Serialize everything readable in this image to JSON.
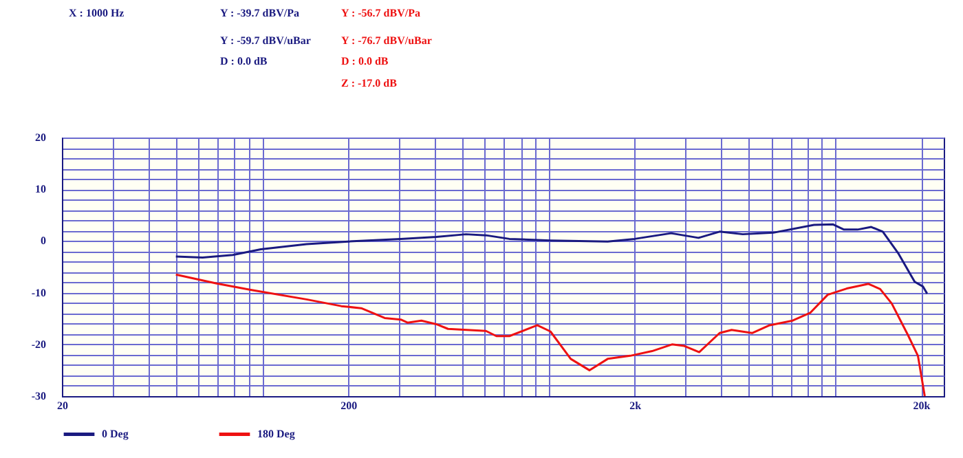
{
  "chart_data": {
    "type": "line",
    "annotations": [
      "X : 1000 Hz",
      "Y : -39.7 dBV/Pa",
      "Y : -59.7 dBV/uBar",
      "D : 0.0 dB",
      "Y : -56.7 dBV/Pa",
      "Y : -76.7 dBV/uBar",
      "D : 0.0 dB",
      "Z : -17.0 dB"
    ],
    "series": [
      {
        "name": "0 Deg",
        "color": "#1a1a80",
        "x": [
          50,
          62,
          79,
          99,
          143,
          200,
          305,
          406,
          515,
          605,
          730,
          1016,
          1610,
          2000,
          2680,
          3340,
          3960,
          4770,
          6100,
          8460,
          9860,
          10760,
          12000,
          13400,
          14700,
          16700,
          19000,
          20300,
          21000
        ],
        "values": [
          -3.0,
          -3.2,
          -2.7,
          -1.6,
          -0.6,
          -0.1,
          0.4,
          0.8,
          1.3,
          1.1,
          0.4,
          0.1,
          -0.1,
          0.4,
          1.5,
          0.6,
          1.8,
          1.3,
          1.6,
          3.1,
          3.2,
          2.2,
          2.2,
          2.7,
          1.8,
          -2.5,
          -7.9,
          -8.8,
          -10.2
        ]
      },
      {
        "name": "180 Deg",
        "color": "#ee1111",
        "x": [
          50,
          69,
          92,
          143,
          189,
          222,
          268,
          305,
          322,
          360,
          406,
          446,
          605,
          658,
          730,
          914,
          1016,
          1196,
          1390,
          1610,
          1930,
          2300,
          2700,
          2980,
          3360,
          3960,
          4360,
          5140,
          5920,
          7120,
          8200,
          9440,
          11000,
          13100,
          14400,
          15800,
          18000,
          19500,
          20600
        ],
        "values": [
          -6.5,
          -8.2,
          -9.5,
          -11.3,
          -12.6,
          -13.0,
          -14.9,
          -15.2,
          -15.8,
          -15.4,
          -16.1,
          -17.0,
          -17.4,
          -18.4,
          -18.4,
          -16.3,
          -17.5,
          -22.8,
          -25.0,
          -22.8,
          -22.2,
          -21.3,
          -20.0,
          -20.3,
          -21.5,
          -17.8,
          -17.2,
          -17.8,
          -16.3,
          -15.4,
          -13.9,
          -10.4,
          -9.2,
          -8.3,
          -9.3,
          -12.1,
          -18.2,
          -22.2,
          -30.0
        ]
      }
    ],
    "log": "x",
    "xlim": [
      20,
      24000
    ],
    "xticks": [
      20,
      {
        "value": 30,
        "label": null
      },
      {
        "value": 40,
        "label": null
      },
      {
        "value": 50,
        "label": null
      },
      {
        "value": 60,
        "label": null
      },
      {
        "value": 70,
        "label": null
      },
      {
        "value": 80,
        "label": null
      },
      {
        "value": 90,
        "label": null
      },
      {
        "value": 100,
        "label": null
      },
      200,
      {
        "value": 300,
        "label": null
      },
      {
        "value": 400,
        "label": null
      },
      {
        "value": 500,
        "label": null
      },
      {
        "value": 600,
        "label": null
      },
      {
        "value": 700,
        "label": null
      },
      {
        "value": 800,
        "label": null
      },
      {
        "value": 900,
        "label": null
      },
      {
        "value": 1000,
        "label": null
      },
      {
        "value": 2000,
        "label": "2k"
      },
      {
        "value": 3000,
        "label": null
      },
      {
        "value": 4000,
        "label": null
      },
      {
        "value": 5000,
        "label": null
      },
      {
        "value": 6000,
        "label": null
      },
      {
        "value": 7000,
        "label": null
      },
      {
        "value": 8000,
        "label": null
      },
      {
        "value": 9000,
        "label": null
      },
      {
        "value": 10000,
        "label": null
      },
      {
        "value": 20000,
        "label": "20k"
      }
    ],
    "ylim": [
      -30,
      20
    ],
    "yticks": [
      -30,
      {
        "value": -28,
        "label": null
      },
      {
        "value": -26,
        "label": null
      },
      {
        "value": -24,
        "label": null
      },
      {
        "value": -22,
        "label": null
      },
      -20,
      {
        "value": -18,
        "label": null
      },
      {
        "value": -16,
        "label": null
      },
      {
        "value": -14,
        "label": null
      },
      {
        "value": -12,
        "label": null
      },
      -10,
      {
        "value": -8,
        "label": null
      },
      {
        "value": -6,
        "label": null
      },
      {
        "value": -4,
        "label": null
      },
      {
        "value": -2,
        "label": null
      },
      0,
      {
        "value": 2,
        "label": null
      },
      {
        "value": 4,
        "label": null
      },
      {
        "value": 6,
        "label": null
      },
      {
        "value": 8,
        "label": null
      },
      10,
      {
        "value": 12,
        "label": null
      },
      {
        "value": 14,
        "label": null
      },
      {
        "value": 16,
        "label": null
      },
      {
        "value": 18,
        "label": null
      },
      20
    ],
    "grid": true,
    "legend": "bottom"
  }
}
